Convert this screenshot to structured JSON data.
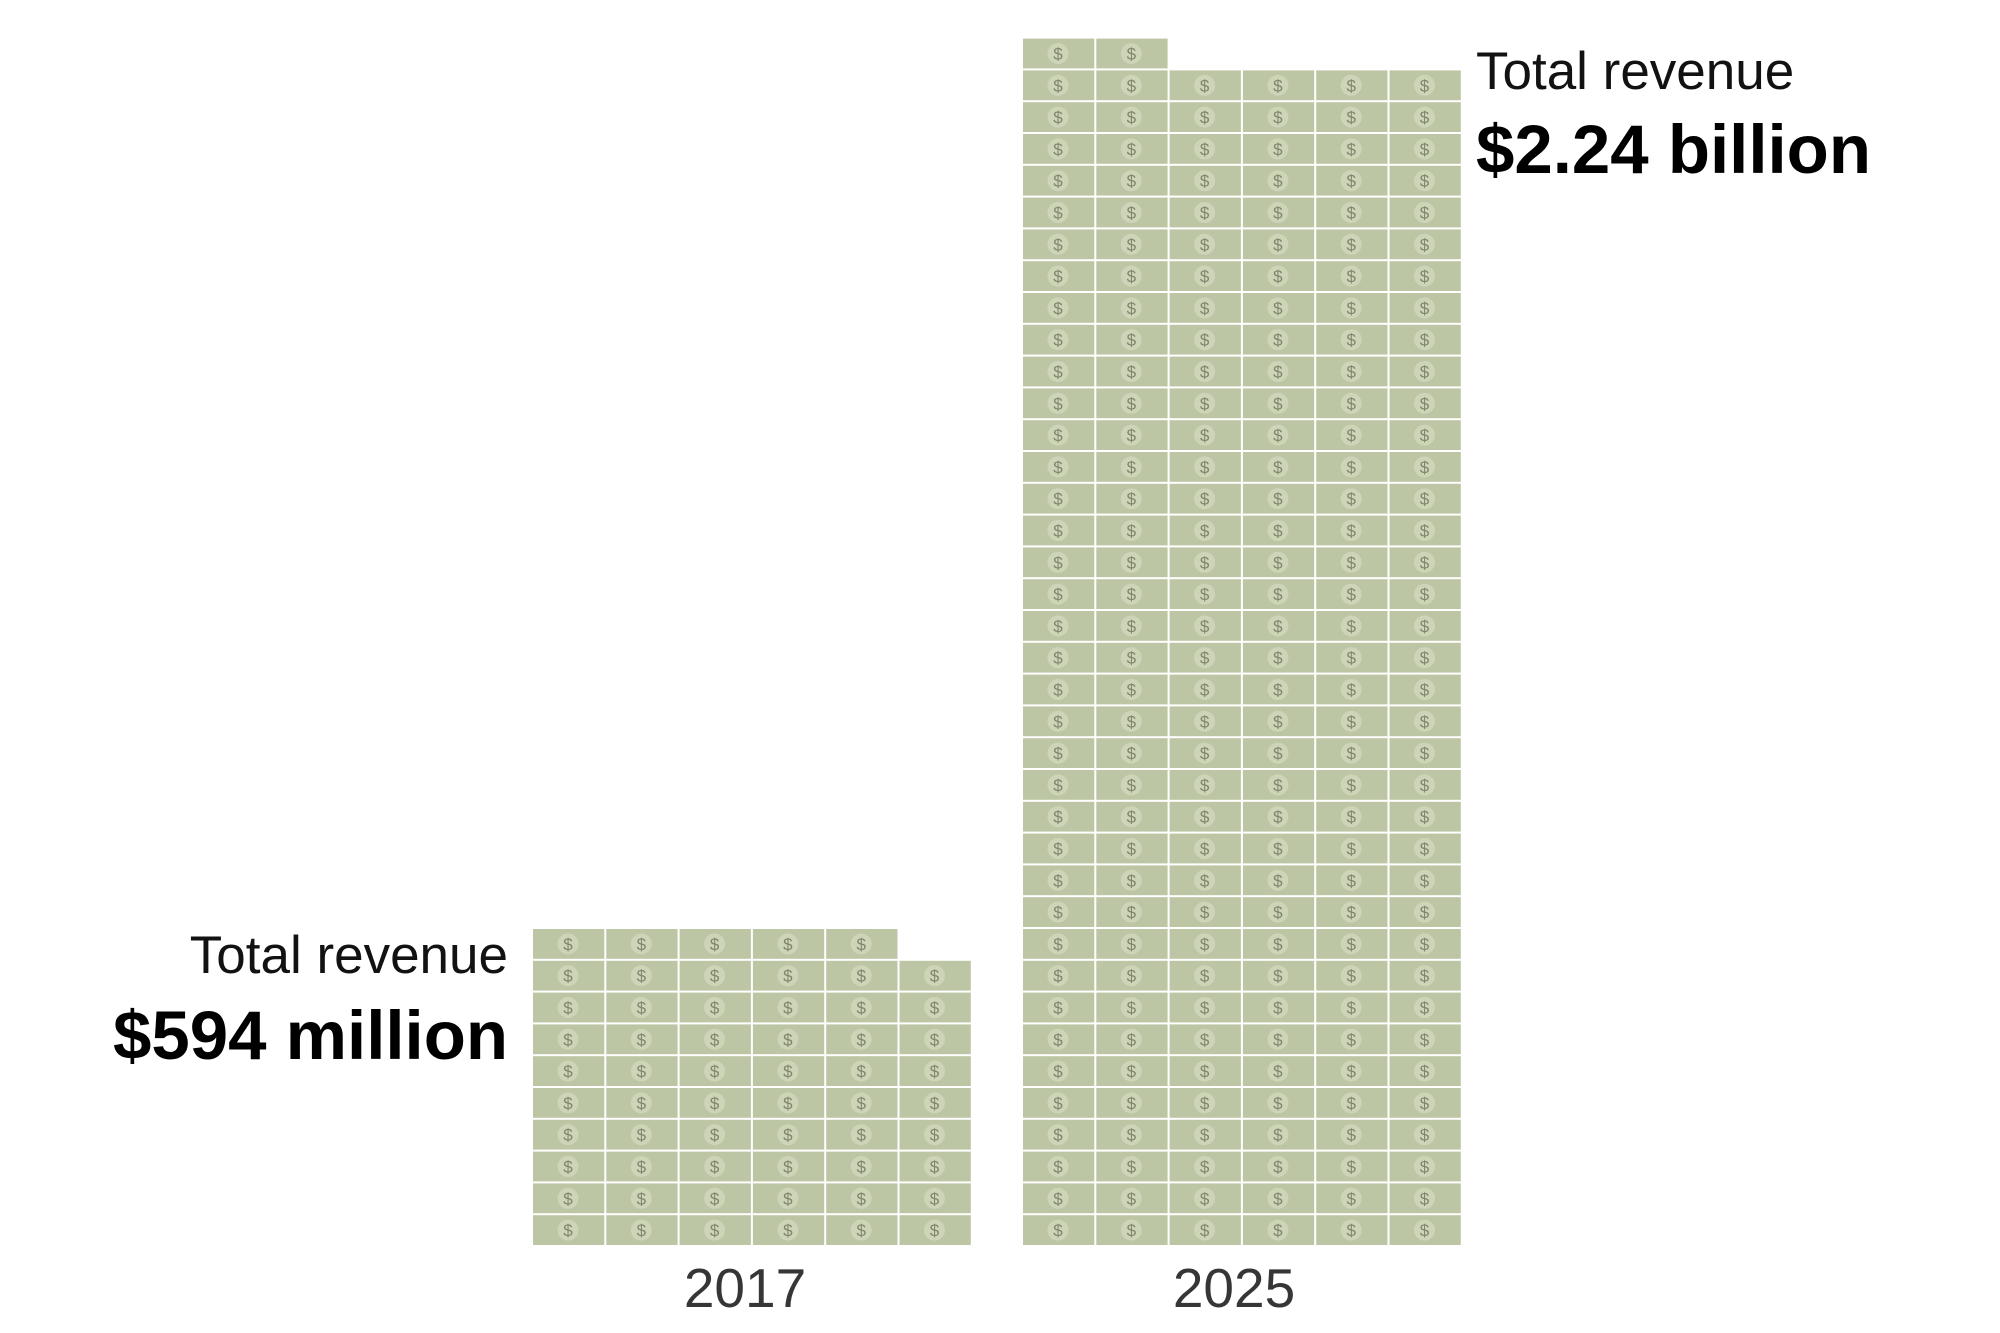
{
  "chart_data": {
    "type": "bar",
    "categories": [
      "2017",
      "2025"
    ],
    "values": [
      594,
      2240
    ],
    "unit_note": "millions of dollars",
    "annotations": [
      {
        "category": "2017",
        "label": "Total revenue",
        "value_text": "$594 million"
      },
      {
        "category": "2025",
        "label": "Total revenue",
        "value_text": "$2.24 billion"
      }
    ],
    "bill_glyph": "$",
    "colors": {
      "bill": "#bdc6a4",
      "bill_circle": "#cdd4b7",
      "bill_glyph": "#7e876a",
      "background": "#ffffff",
      "label": "#000000",
      "tick": "#363636"
    }
  }
}
